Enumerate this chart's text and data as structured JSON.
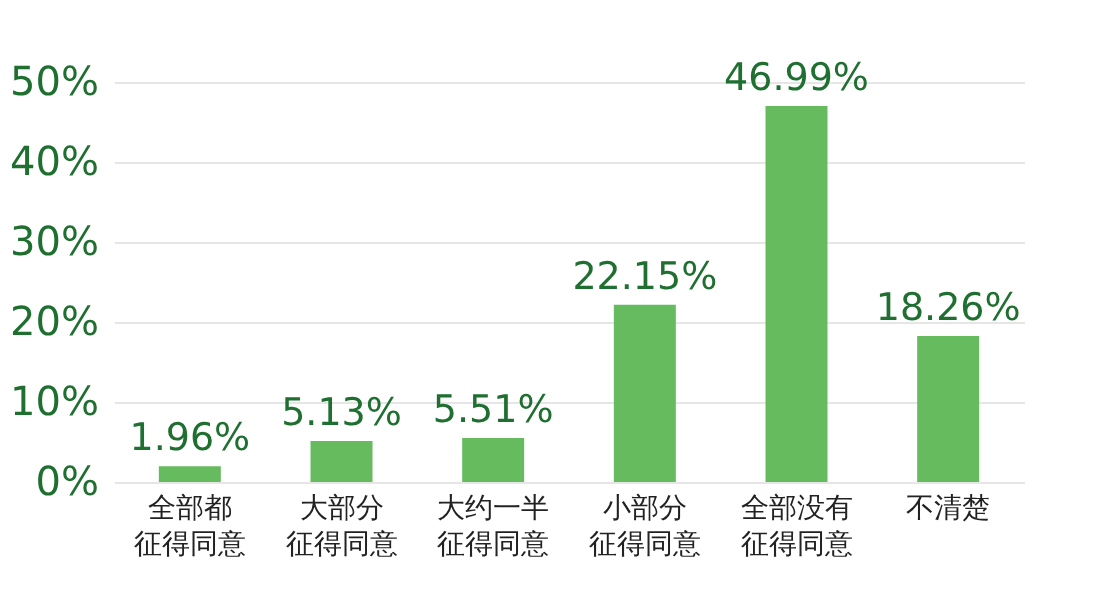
{
  "chart_data": {
    "type": "bar",
    "categories": [
      "全部都征得同意",
      "大部分征得同意",
      "大约一半征得同意",
      "小部分征得同意",
      "全部没有征得同意",
      "不清楚"
    ],
    "values": [
      1.96,
      5.13,
      5.51,
      22.15,
      46.99,
      18.26
    ],
    "value_labels": [
      "1.96%",
      "5.13%",
      "5.51%",
      "22.15%",
      "46.99%",
      "18.26%"
    ],
    "color": "#66bb5e",
    "ylim": [
      0,
      50
    ],
    "yticks": [
      {
        "value": 0,
        "label": "0%"
      },
      {
        "value": 10,
        "label": "10%"
      },
      {
        "value": 20,
        "label": "20%"
      },
      {
        "value": 30,
        "label": "30%"
      },
      {
        "value": 40,
        "label": "40%"
      },
      {
        "value": 50,
        "label": "50%"
      }
    ],
    "grid": "y"
  }
}
